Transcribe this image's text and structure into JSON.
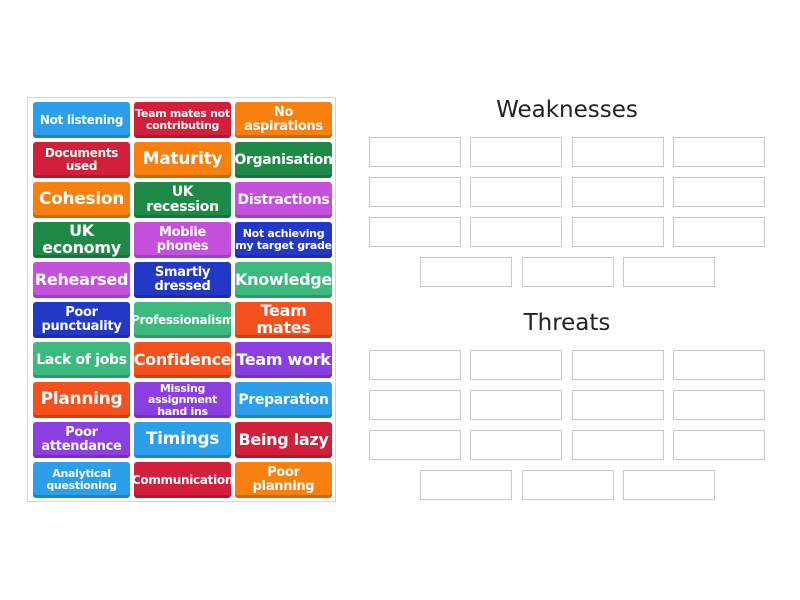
{
  "tiles": [
    {
      "label": "Not listening",
      "color": "#2c9fea"
    },
    {
      "label": "Team mates not contributing",
      "color": "#d21f3c"
    },
    {
      "label": "No aspirations",
      "color": "#f7800f"
    },
    {
      "label": "Documents used",
      "color": "#d21f3c"
    },
    {
      "label": "Maturity",
      "color": "#f7800f"
    },
    {
      "label": "Organisation",
      "color": "#1f8a48"
    },
    {
      "label": "Cohesion",
      "color": "#f7800f"
    },
    {
      "label": "UK recession",
      "color": "#1f8a48"
    },
    {
      "label": "Distractions",
      "color": "#c550de"
    },
    {
      "label": "UK economy",
      "color": "#1f8a48"
    },
    {
      "label": "Mobile phones",
      "color": "#c550de"
    },
    {
      "label": "Not achieving my target grade",
      "color": "#2339c6"
    },
    {
      "label": "Rehearsed",
      "color": "#c550de"
    },
    {
      "label": "Smartly dressed",
      "color": "#2339c6"
    },
    {
      "label": "Knowledge",
      "color": "#3bb97e"
    },
    {
      "label": "Poor punctuality",
      "color": "#2339c6"
    },
    {
      "label": "Professionalism",
      "color": "#3bb97e"
    },
    {
      "label": "Team mates",
      "color": "#f4511e"
    },
    {
      "label": "Lack of jobs",
      "color": "#3bb97e"
    },
    {
      "label": "Confidence",
      "color": "#f4511e"
    },
    {
      "label": "Team work",
      "color": "#8c3fe0"
    },
    {
      "label": "Planning",
      "color": "#f4511e"
    },
    {
      "label": "Missing assignment hand ins",
      "color": "#8c3fe0"
    },
    {
      "label": "Preparation",
      "color": "#2c9fea"
    },
    {
      "label": "Poor attendance",
      "color": "#8c3fe0"
    },
    {
      "label": "Timings",
      "color": "#2c9fea"
    },
    {
      "label": "Being lazy",
      "color": "#d21f3c"
    },
    {
      "label": "Analytical questioning",
      "color": "#2c9fea"
    },
    {
      "label": "Communication",
      "color": "#d21f3c"
    },
    {
      "label": "Poor planning",
      "color": "#f7800f"
    }
  ],
  "groups": [
    {
      "title": "Weaknesses",
      "slots": 15
    },
    {
      "title": "Threats",
      "slots": 15
    }
  ]
}
